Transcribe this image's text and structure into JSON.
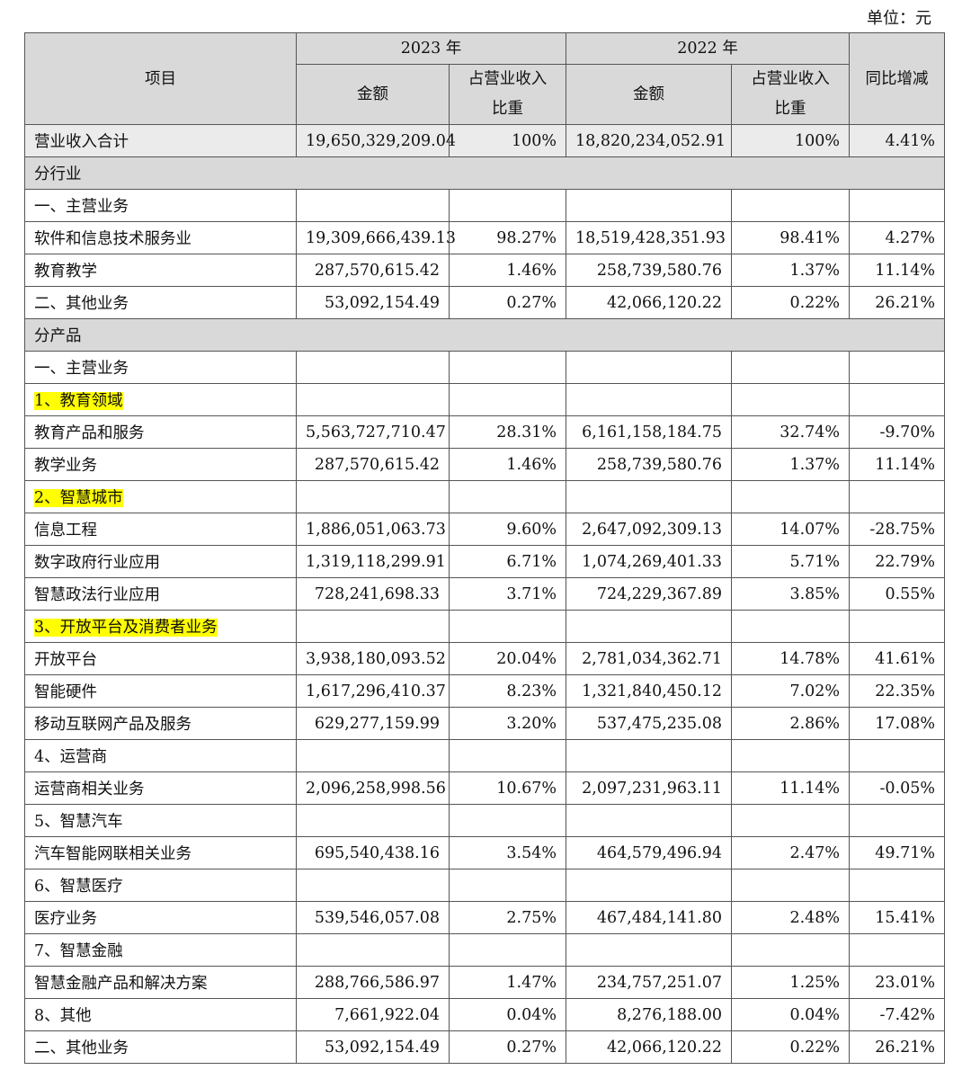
{
  "unit_label": "单位：元",
  "header": {
    "item": "项目",
    "year_2023": "2023 年",
    "year_2022": "2022 年",
    "amount": "金额",
    "share_line1": "占营业收入",
    "share_line2": "比重",
    "yoy": "同比增减"
  },
  "total": {
    "label": "营业收入合计",
    "amt2023": "19,650,329,209.04",
    "pct2023": "100%",
    "amt2022": "18,820,234,052.91",
    "pct2022": "100%",
    "yoy": "4.41%"
  },
  "rows": [
    {
      "type": "section",
      "label": "分行业"
    },
    {
      "type": "group",
      "label": "一、主营业务"
    },
    {
      "type": "data",
      "label": "软件和信息技术服务业",
      "amt2023": "19,309,666,439.13",
      "pct2023": "98.27%",
      "amt2022": "18,519,428,351.93",
      "pct2022": "98.41%",
      "yoy": "4.27%"
    },
    {
      "type": "data",
      "label": "教育教学",
      "amt2023": "287,570,615.42",
      "pct2023": "1.46%",
      "amt2022": "258,739,580.76",
      "pct2022": "1.37%",
      "yoy": "11.14%"
    },
    {
      "type": "data",
      "label": "二、其他业务",
      "amt2023": "53,092,154.49",
      "pct2023": "0.27%",
      "amt2022": "42,066,120.22",
      "pct2022": "0.22%",
      "yoy": "26.21%"
    },
    {
      "type": "section",
      "label": "分产品"
    },
    {
      "type": "group",
      "label": "一、主营业务"
    },
    {
      "type": "group",
      "label": "1、教育领域",
      "highlight": true
    },
    {
      "type": "data",
      "label": "教育产品和服务",
      "amt2023": "5,563,727,710.47",
      "pct2023": "28.31%",
      "amt2022": "6,161,158,184.75",
      "pct2022": "32.74%",
      "yoy": "-9.70%"
    },
    {
      "type": "data",
      "label": "教学业务",
      "amt2023": "287,570,615.42",
      "pct2023": "1.46%",
      "amt2022": "258,739,580.76",
      "pct2022": "1.37%",
      "yoy": "11.14%"
    },
    {
      "type": "group",
      "label": "2、智慧城市",
      "highlight": true
    },
    {
      "type": "data",
      "label": "信息工程",
      "amt2023": "1,886,051,063.73",
      "pct2023": "9.60%",
      "amt2022": "2,647,092,309.13",
      "pct2022": "14.07%",
      "yoy": "-28.75%"
    },
    {
      "type": "data",
      "label": "数字政府行业应用",
      "amt2023": "1,319,118,299.91",
      "pct2023": "6.71%",
      "amt2022": "1,074,269,401.33",
      "pct2022": "5.71%",
      "yoy": "22.79%"
    },
    {
      "type": "data",
      "label": "智慧政法行业应用",
      "amt2023": "728,241,698.33",
      "pct2023": "3.71%",
      "amt2022": "724,229,367.89",
      "pct2022": "3.85%",
      "yoy": "0.55%"
    },
    {
      "type": "group",
      "label": "3、开放平台及消费者业务",
      "highlight": true
    },
    {
      "type": "data",
      "label": "开放平台",
      "amt2023": "3,938,180,093.52",
      "pct2023": "20.04%",
      "amt2022": "2,781,034,362.71",
      "pct2022": "14.78%",
      "yoy": "41.61%"
    },
    {
      "type": "data",
      "label": "智能硬件",
      "amt2023": "1,617,296,410.37",
      "pct2023": "8.23%",
      "amt2022": "1,321,840,450.12",
      "pct2022": "7.02%",
      "yoy": "22.35%"
    },
    {
      "type": "data",
      "label": "移动互联网产品及服务",
      "amt2023": "629,277,159.99",
      "pct2023": "3.20%",
      "amt2022": "537,475,235.08",
      "pct2022": "2.86%",
      "yoy": "17.08%"
    },
    {
      "type": "group",
      "label": "4、运营商"
    },
    {
      "type": "data",
      "label": "运营商相关业务",
      "amt2023": "2,096,258,998.56",
      "pct2023": "10.67%",
      "amt2022": "2,097,231,963.11",
      "pct2022": "11.14%",
      "yoy": "-0.05%"
    },
    {
      "type": "group",
      "label": "5、智慧汽车"
    },
    {
      "type": "data",
      "label": "汽车智能网联相关业务",
      "amt2023": "695,540,438.16",
      "pct2023": "3.54%",
      "amt2022": "464,579,496.94",
      "pct2022": "2.47%",
      "yoy": "49.71%"
    },
    {
      "type": "group",
      "label": "6、智慧医疗"
    },
    {
      "type": "data",
      "label": "医疗业务",
      "amt2023": "539,546,057.08",
      "pct2023": "2.75%",
      "amt2022": "467,484,141.80",
      "pct2022": "2.48%",
      "yoy": "15.41%"
    },
    {
      "type": "group",
      "label": "7、智慧金融"
    },
    {
      "type": "data",
      "label": "智慧金融产品和解决方案",
      "amt2023": "288,766,586.97",
      "pct2023": "1.47%",
      "amt2022": "234,757,251.07",
      "pct2022": "1.25%",
      "yoy": "23.01%"
    },
    {
      "type": "data",
      "label": "8、其他",
      "amt2023": "7,661,922.04",
      "pct2023": "0.04%",
      "amt2022": "8,276,188.00",
      "pct2022": "0.04%",
      "yoy": "-7.42%"
    },
    {
      "type": "data",
      "label": "二、其他业务",
      "amt2023": "53,092,154.49",
      "pct2023": "0.27%",
      "amt2022": "42,066,120.22",
      "pct2022": "0.22%",
      "yoy": "26.21%"
    }
  ]
}
